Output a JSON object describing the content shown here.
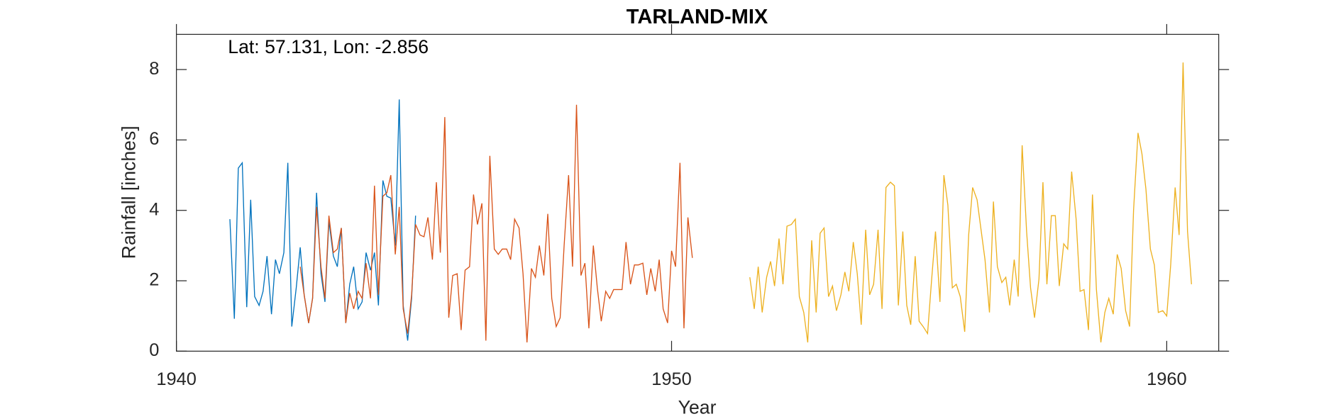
{
  "chart_data": {
    "type": "line",
    "title": "TARLAND-MIX",
    "xlabel": "Year",
    "ylabel": "Rainfall [inches]",
    "annotation": "Lat: 57.131, Lon: -2.856",
    "xlim": [
      1940,
      1961.05
    ],
    "xticks": [
      1940,
      1950,
      1960
    ],
    "ylim": [
      0,
      9
    ],
    "yticks": [
      0,
      2,
      4,
      6,
      8
    ],
    "grid": false,
    "series": [
      {
        "color": "#0072bd",
        "x": [
          1941.08,
          1941.17,
          1941.25,
          1941.33,
          1941.42,
          1941.5,
          1941.58,
          1941.67,
          1941.75,
          1941.83,
          1941.92,
          1942.0,
          1942.08,
          1942.17,
          1942.25,
          1942.33,
          1942.42,
          1942.5,
          1942.58,
          1942.67,
          1942.75,
          1942.83,
          1942.92,
          1943.0,
          1943.08,
          1943.17,
          1943.25,
          1943.33,
          1943.42,
          1943.5,
          1943.58,
          1943.67,
          1943.75,
          1943.83,
          1943.92,
          1944.0,
          1944.08,
          1944.17,
          1944.25,
          1944.33,
          1944.42,
          1944.5,
          1944.58,
          1944.67,
          1944.75,
          1944.83
        ],
        "values": [
          3.75,
          0.92,
          5.2,
          5.35,
          1.25,
          4.3,
          1.55,
          1.3,
          1.7,
          2.7,
          1.05,
          2.6,
          2.2,
          2.8,
          5.35,
          0.7,
          1.8,
          2.95,
          1.6,
          0.8,
          1.5,
          4.5,
          2.2,
          1.4,
          3.7,
          2.7,
          2.4,
          3.5,
          0.8,
          1.9,
          2.4,
          1.2,
          1.4,
          2.8,
          2.3,
          2.8,
          1.3,
          4.85,
          4.4,
          4.35,
          3.0,
          7.15,
          1.3,
          0.3,
          1.5,
          3.85
        ]
      },
      {
        "color": "#d95319",
        "x": [
          1942.5,
          1942.58,
          1942.67,
          1942.75,
          1942.83,
          1942.92,
          1943.0,
          1943.08,
          1943.17,
          1943.25,
          1943.33,
          1943.42,
          1943.5,
          1943.58,
          1943.67,
          1943.75,
          1943.83,
          1943.92,
          1944.0,
          1944.08,
          1944.17,
          1944.25,
          1944.33,
          1944.42,
          1944.5,
          1944.58,
          1944.67,
          1944.75,
          1944.83,
          1944.92,
          1945.0,
          1945.08,
          1945.17,
          1945.25,
          1945.33,
          1945.42,
          1945.5,
          1945.58,
          1945.67,
          1945.75,
          1945.83,
          1945.92,
          1946.0,
          1946.08,
          1946.17,
          1946.25,
          1946.33,
          1946.42,
          1946.5,
          1946.58,
          1946.67,
          1946.75,
          1946.83,
          1946.92,
          1947.0,
          1947.08,
          1947.17,
          1947.25,
          1947.33,
          1947.42,
          1947.5,
          1947.58,
          1947.67,
          1947.75,
          1947.83,
          1947.92,
          1948.0,
          1948.08,
          1948.17,
          1948.25,
          1948.33,
          1948.42,
          1948.5,
          1948.58,
          1948.67,
          1948.75,
          1948.83,
          1948.92,
          1949.0,
          1949.08,
          1949.17,
          1949.25,
          1949.33,
          1949.42,
          1949.5,
          1949.58,
          1949.67,
          1949.75,
          1949.83,
          1949.92,
          1950.0,
          1950.08,
          1950.17,
          1950.25,
          1950.33,
          1950.42
        ],
        "values": [
          2.4,
          1.6,
          0.8,
          1.5,
          4.1,
          2.4,
          1.5,
          3.85,
          2.8,
          2.9,
          3.5,
          0.8,
          1.65,
          1.2,
          1.7,
          1.5,
          2.5,
          1.5,
          4.7,
          1.6,
          4.4,
          4.5,
          5.0,
          2.75,
          4.1,
          1.2,
          0.5,
          1.6,
          3.6,
          3.3,
          3.25,
          3.8,
          2.6,
          4.8,
          2.8,
          6.65,
          0.95,
          2.15,
          2.2,
          0.6,
          2.3,
          2.4,
          4.45,
          3.6,
          4.2,
          0.3,
          5.55,
          2.9,
          2.75,
          2.9,
          2.9,
          2.6,
          3.75,
          3.5,
          2.2,
          0.25,
          2.35,
          2.1,
          3.0,
          2.15,
          3.9,
          1.5,
          0.7,
          0.95,
          3.0,
          5.0,
          2.4,
          7.0,
          2.15,
          2.5,
          0.65,
          3.0,
          1.8,
          0.85,
          1.7,
          1.5,
          1.75,
          1.75,
          1.75,
          3.1,
          1.9,
          2.45,
          2.45,
          2.5,
          1.6,
          2.35,
          1.7,
          2.6,
          1.2,
          0.8,
          2.85,
          2.4,
          5.35,
          0.65,
          3.8,
          2.65
        ]
      },
      {
        "color": "#edb120",
        "x": [
          1951.58,
          1951.67,
          1951.75,
          1951.83,
          1951.92,
          1952.0,
          1952.08,
          1952.17,
          1952.25,
          1952.33,
          1952.42,
          1952.5,
          1952.58,
          1952.67,
          1952.75,
          1952.83,
          1952.92,
          1953.0,
          1953.08,
          1953.17,
          1953.25,
          1953.33,
          1953.42,
          1953.5,
          1953.58,
          1953.67,
          1953.75,
          1953.83,
          1953.92,
          1954.0,
          1954.08,
          1954.17,
          1954.25,
          1954.33,
          1954.42,
          1954.5,
          1954.58,
          1954.67,
          1954.75,
          1954.83,
          1954.92,
          1955.0,
          1955.08,
          1955.17,
          1955.25,
          1955.33,
          1955.42,
          1955.5,
          1955.58,
          1955.67,
          1955.75,
          1955.83,
          1955.92,
          1956.0,
          1956.08,
          1956.17,
          1956.25,
          1956.33,
          1956.42,
          1956.5,
          1956.58,
          1956.67,
          1956.75,
          1956.83,
          1956.92,
          1957.0,
          1957.08,
          1957.17,
          1957.25,
          1957.33,
          1957.42,
          1957.5,
          1957.58,
          1957.67,
          1957.75,
          1957.83,
          1957.92,
          1958.0,
          1958.08,
          1958.17,
          1958.25,
          1958.33,
          1958.42,
          1958.5,
          1958.58,
          1958.67,
          1958.75,
          1958.83,
          1958.92,
          1959.0,
          1959.08,
          1959.17,
          1959.25,
          1959.33,
          1959.42,
          1959.5,
          1959.58,
          1959.67,
          1959.75,
          1959.83,
          1959.92,
          1960.0,
          1960.08,
          1960.17,
          1960.25,
          1960.33,
          1960.42,
          1960.5
        ],
        "values": [
          2.1,
          1.2,
          2.4,
          1.1,
          2.1,
          2.55,
          1.85,
          3.2,
          1.9,
          3.55,
          3.6,
          3.75,
          1.55,
          1.1,
          0.25,
          3.15,
          1.1,
          3.35,
          3.5,
          1.55,
          1.85,
          1.15,
          1.6,
          2.25,
          1.7,
          3.1,
          2.2,
          0.75,
          3.45,
          1.6,
          1.9,
          3.45,
          1.2,
          4.65,
          4.8,
          4.7,
          1.3,
          3.4,
          1.3,
          0.75,
          2.7,
          0.85,
          0.7,
          0.5,
          2.0,
          3.4,
          1.4,
          5.0,
          4.15,
          1.8,
          1.9,
          1.55,
          0.55,
          3.3,
          4.65,
          4.3,
          3.45,
          2.6,
          1.1,
          4.25,
          2.4,
          1.95,
          2.1,
          1.3,
          2.6,
          1.55,
          5.85,
          3.4,
          1.8,
          0.95,
          2.05,
          4.8,
          1.9,
          3.85,
          3.85,
          1.85,
          3.05,
          2.9,
          5.1,
          3.75,
          1.7,
          1.75,
          0.6,
          4.45,
          1.75,
          0.25,
          1.1,
          1.5,
          1.05,
          2.75,
          2.35,
          1.15,
          0.7,
          4.0,
          6.2,
          5.6,
          4.6,
          2.9,
          2.45,
          1.1,
          1.15,
          1.0,
          2.45,
          4.65,
          3.3,
          8.2,
          3.4,
          1.9
        ]
      }
    ]
  }
}
